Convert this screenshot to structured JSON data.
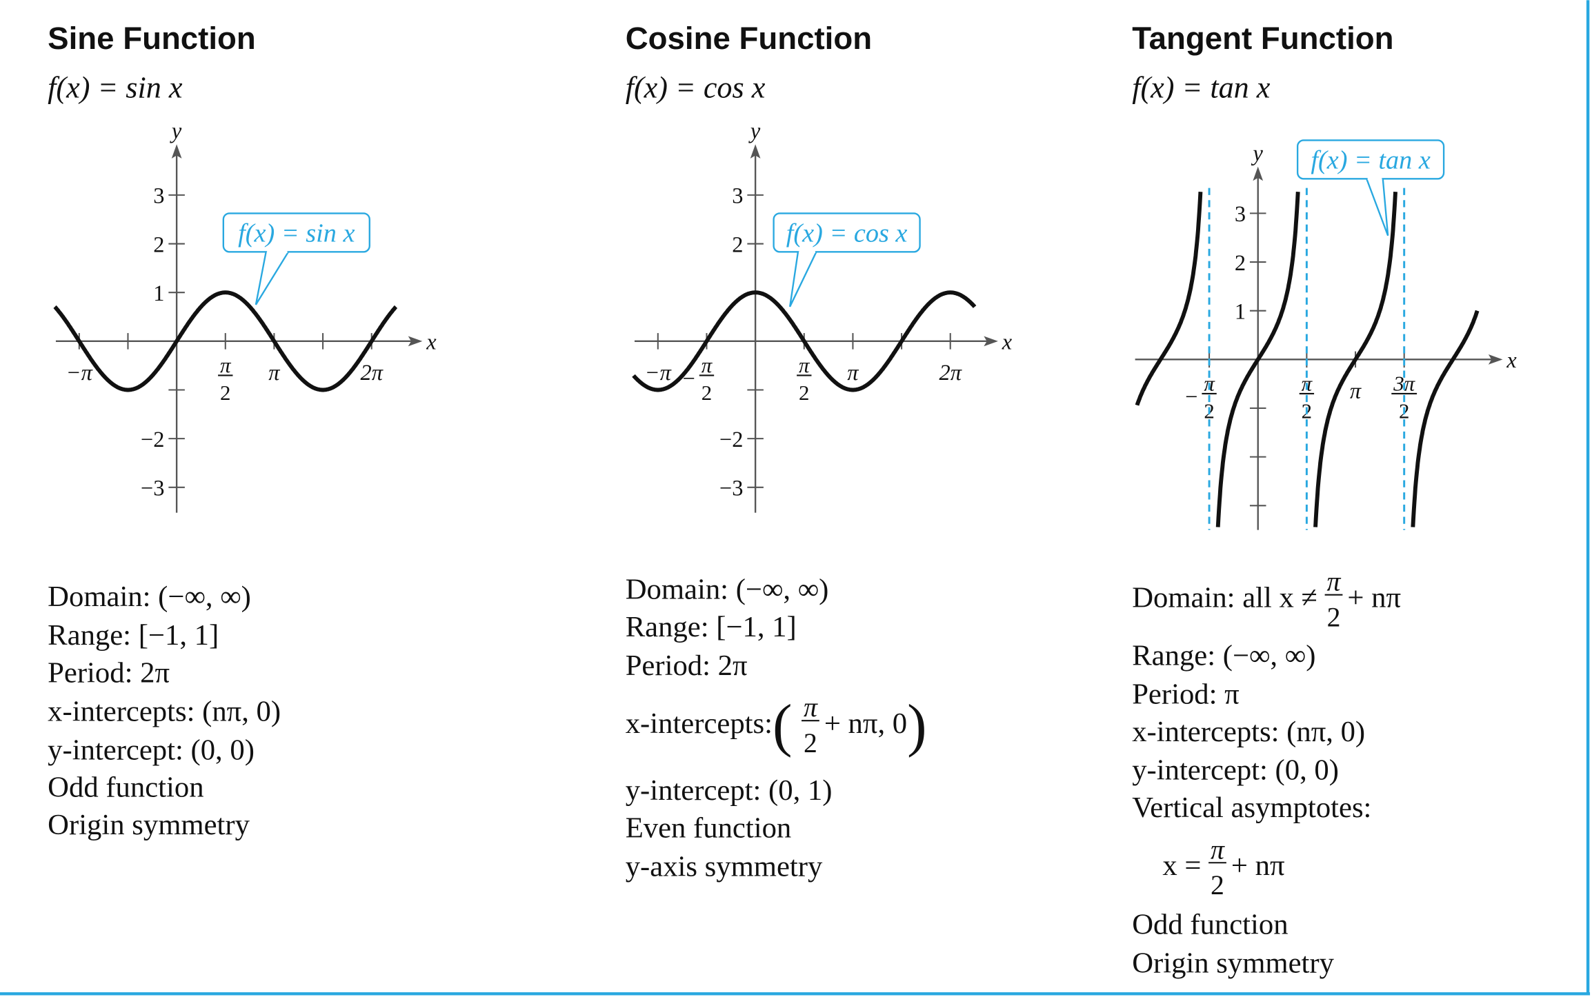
{
  "panels": [
    {
      "title": "Sine Function",
      "formula": "f(x) = sin x",
      "graph": {
        "x_label": "x",
        "y_label": "y",
        "callout": "f(x) = sin x",
        "x_tick_labels": [
          "−π",
          {
            "num": "π",
            "den": "2"
          },
          "π",
          "2π"
        ],
        "y_tick_labels": [
          "3",
          "2",
          "1",
          "−2",
          "−3"
        ]
      },
      "properties": [
        [
          "Domain:  (−∞, ∞)"
        ],
        [
          "Range:  [−1, 1]"
        ],
        [
          "Period:  2π"
        ],
        [
          "x-intercepts:  (nπ, 0)"
        ],
        [
          "y-intercept:  (0, 0)"
        ],
        [
          "Odd function"
        ],
        [
          "Origin symmetry"
        ]
      ]
    },
    {
      "title": "Cosine Function",
      "formula": "f(x) = cos x",
      "graph": {
        "x_label": "x",
        "y_label": "y",
        "callout": "f(x) = cos x",
        "x_tick_labels": [
          "−π",
          {
            "sign": "−",
            "num": "π",
            "den": "2"
          },
          {
            "num": "π",
            "den": "2"
          },
          "π",
          "2π"
        ],
        "y_tick_labels": [
          "3",
          "2",
          "−2",
          "−3"
        ]
      },
      "properties": [
        [
          "Domain:  (−∞, ∞)"
        ],
        [
          "Range:  [−1, 1]"
        ],
        [
          "Period:  2π"
        ],
        [
          "x-intercepts:  ",
          "(",
          {
            "num": "π",
            "den": "2"
          },
          "+ nπ, 0",
          ")"
        ],
        [
          "y-intercept:  (0, 1)"
        ],
        [
          "Even function"
        ],
        [
          "y-axis symmetry"
        ]
      ]
    },
    {
      "title": "Tangent Function",
      "formula": "f(x) = tan x",
      "graph": {
        "x_label": "x",
        "y_label": "y",
        "callout": "f(x) = tan x",
        "x_tick_labels": [
          {
            "sign": "−",
            "num": "π",
            "den": "2"
          },
          {
            "num": "π",
            "den": "2"
          },
          "π",
          {
            "num": "3π",
            "den": "2"
          }
        ],
        "y_tick_labels": [
          "3",
          "2",
          "1"
        ]
      },
      "properties": [
        [
          "Domain: all x ≠ ",
          {
            "num": "π",
            "den": "2"
          },
          "+ nπ"
        ],
        [
          "Range:  (−∞, ∞)"
        ],
        [
          "Period:  π"
        ],
        [
          "x-intercepts:  (nπ, 0)"
        ],
        [
          "y-intercept:  (0, 0)"
        ],
        [
          "Vertical asymptotes:"
        ],
        [
          "x = ",
          {
            "num": "π",
            "den": "2"
          },
          "+ nπ"
        ],
        [
          "Odd function"
        ],
        [
          "Origin symmetry"
        ]
      ]
    }
  ]
}
